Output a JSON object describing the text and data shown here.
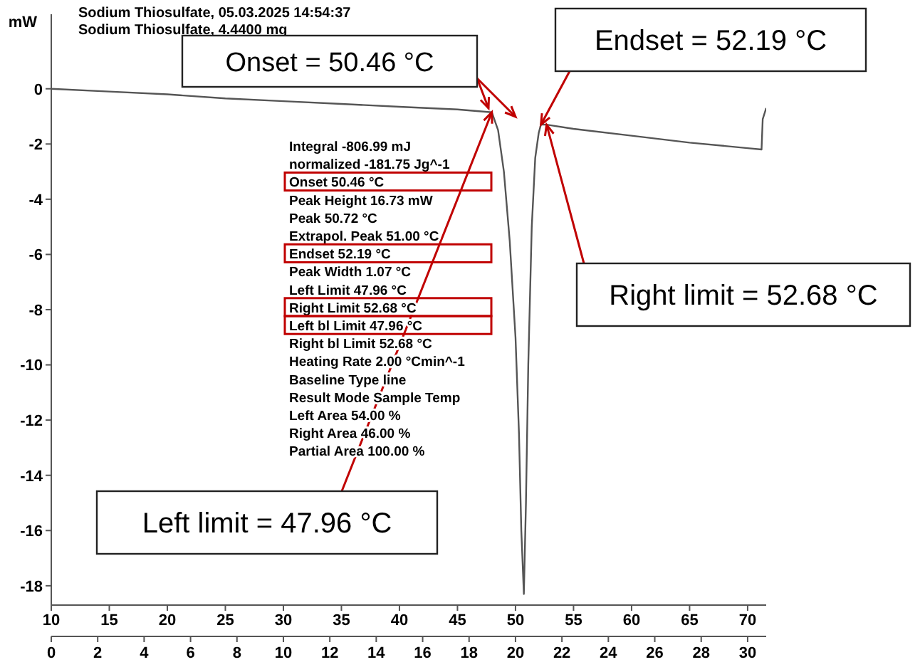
{
  "chart_data": {
    "type": "line",
    "title": "Sodium Thiosulfate, 05.03.2025 14:54:37",
    "subtitle": "Sodium Thiosulfate, 4.4400 mg",
    "ylabel": "mW",
    "x": [
      10,
      15,
      20,
      25,
      30,
      35,
      40,
      45,
      47.96,
      48.5,
      49,
      49.5,
      50,
      50.3,
      50.5,
      50.72,
      50.9,
      51.1,
      51.4,
      51.7,
      52.0,
      52.19,
      52.68,
      55,
      60,
      65,
      70,
      71.2,
      71.3,
      71.6
    ],
    "series": [
      {
        "color": "#555555",
        "values": [
          0,
          -0.1,
          -0.2,
          -0.35,
          -0.45,
          -0.55,
          -0.65,
          -0.75,
          -0.85,
          -1.5,
          -3,
          -5.5,
          -9,
          -12.5,
          -16,
          -18.3,
          -15,
          -10,
          -5,
          -2.5,
          -1.6,
          -1.3,
          -1.3,
          -1.45,
          -1.7,
          -1.95,
          -2.15,
          -2.2,
          -1.1,
          -0.7
        ]
      }
    ],
    "xlim": [
      10,
      71.6
    ],
    "xticks": [
      10,
      15,
      20,
      25,
      30,
      35,
      40,
      45,
      50,
      55,
      60,
      65,
      70
    ],
    "x2lim": [
      0,
      30.8
    ],
    "x2ticks": [
      0,
      2,
      4,
      6,
      8,
      10,
      12,
      14,
      16,
      18,
      20,
      22,
      24,
      26,
      28,
      30
    ],
    "ylim": [
      -18.7,
      2.7
    ],
    "yticks": [
      -18,
      -16,
      -14,
      -12,
      -10,
      -8,
      -6,
      -4,
      -2,
      0
    ],
    "grid": false,
    "legend": false,
    "marker": "none",
    "line_style": "solid",
    "annotations": [
      "Onset = 50.46 °C",
      {
        "text": "Endset = 52.19 °C",
        "x": 52.19,
        "y": -1.3
      },
      {
        "text": "Right limit = 52.68 °C",
        "x": 52.68,
        "y": -1.3
      },
      {
        "text": "Left limit = 47.96 °C",
        "x": 47.96,
        "y": -0.85
      },
      "Integral -806.99 mJ",
      "normalized -181.75 Jg^-1",
      "Onset 50.46 °C",
      "Peak Height 16.73 mW",
      "Peak 50.72 °C",
      "Extrapol. Peak 51.00 °C",
      "Endset 52.19 °C",
      "Peak Width 1.07 °C",
      "Left Limit 47.96 °C",
      "Right Limit 52.68 °C",
      "Left bl Limit 47.96 °C",
      "Right bl Limit 52.68 °C",
      "Heating Rate 2.00 °Cmin^-1",
      "Baseline Type line",
      "Result Mode Sample Temp",
      "Left Area 54.00 %",
      "Right Area 46.00 %",
      "Partial Area 100.00 %"
    ]
  }
}
